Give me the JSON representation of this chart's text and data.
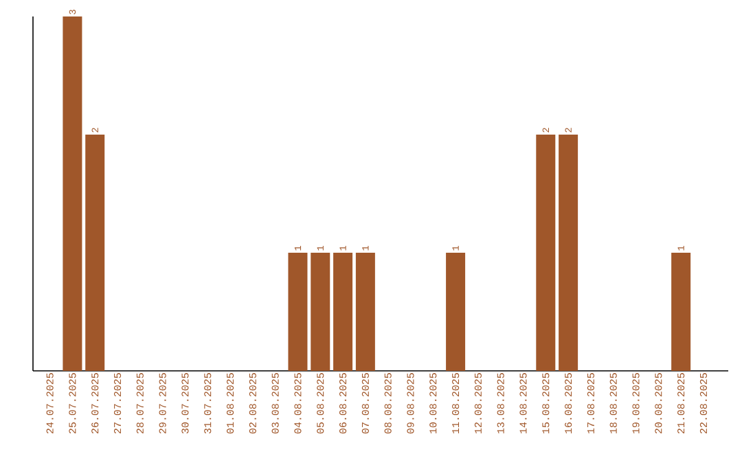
{
  "chart_data": {
    "type": "bar",
    "categories": [
      "24.07.2025",
      "25.07.2025",
      "26.07.2025",
      "27.07.2025",
      "28.07.2025",
      "29.07.2025",
      "30.07.2025",
      "31.07.2025",
      "01.08.2025",
      "02.08.2025",
      "03.08.2025",
      "04.08.2025",
      "05.08.2025",
      "06.08.2025",
      "07.08.2025",
      "08.08.2025",
      "09.08.2025",
      "10.08.2025",
      "11.08.2025",
      "12.08.2025",
      "13.08.2025",
      "14.08.2025",
      "15.08.2025",
      "16.08.2025",
      "17.08.2025",
      "18.08.2025",
      "19.08.2025",
      "20.08.2025",
      "21.08.2025",
      "22.08.2025"
    ],
    "values": [
      null,
      3,
      2,
      null,
      null,
      null,
      null,
      null,
      null,
      null,
      null,
      1,
      1,
      1,
      1,
      null,
      null,
      null,
      1,
      null,
      null,
      null,
      2,
      2,
      null,
      null,
      null,
      null,
      1,
      null
    ],
    "color": "#a0572a",
    "data_labels": true
  }
}
